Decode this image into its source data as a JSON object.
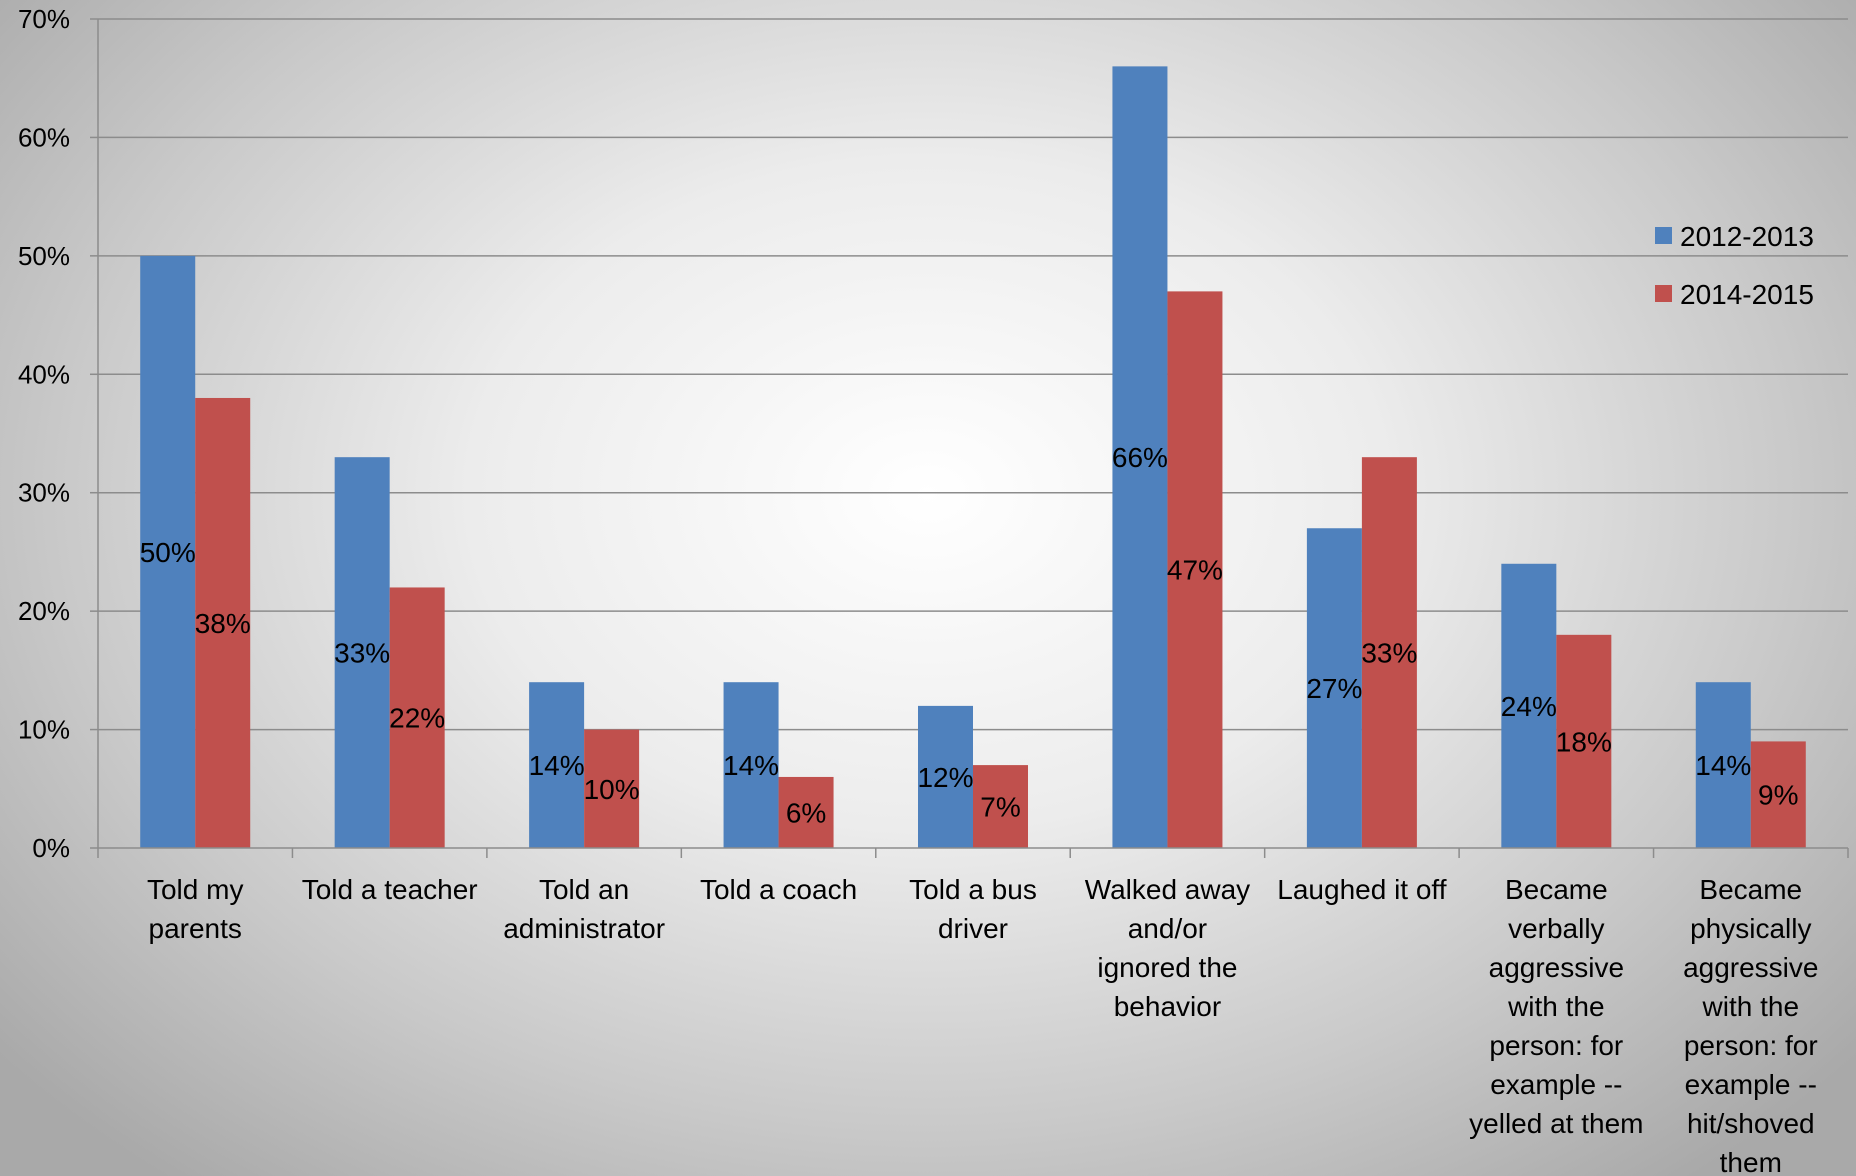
{
  "colors": {
    "series_2012": "#4f81bd",
    "series_2014": "#c0504d",
    "gridline": "#8c8c8c",
    "axis": "#8c8c8c"
  },
  "chart_data": {
    "type": "bar",
    "title": "",
    "xlabel": "",
    "ylabel": "",
    "ylim": [
      0,
      70
    ],
    "yticks": [
      "0%",
      "10%",
      "20%",
      "30%",
      "40%",
      "50%",
      "60%",
      "70%"
    ],
    "grid": true,
    "legend_position": "right",
    "categories": [
      [
        "Told my",
        "parents"
      ],
      [
        "Told a teacher"
      ],
      [
        "Told an",
        "administrator"
      ],
      [
        "Told a coach"
      ],
      [
        "Told a bus",
        "driver"
      ],
      [
        "Walked away",
        "and/or",
        "ignored the",
        "behavior"
      ],
      [
        "Laughed it off"
      ],
      [
        "Became",
        "verbally",
        "aggressive",
        "with the",
        "person: for",
        "example --",
        "yelled at them"
      ],
      [
        "Became",
        "physically",
        "aggressive",
        "with the",
        "person: for",
        "example --",
        "hit/shoved",
        "them"
      ]
    ],
    "series": [
      {
        "name": "2012-2013",
        "color": "#4f81bd",
        "values": [
          50,
          33,
          14,
          14,
          12,
          66,
          27,
          24,
          14
        ],
        "labels": [
          "50%",
          "33%",
          "14%",
          "14%",
          "12%",
          "66%",
          "27%",
          "24%",
          "14%"
        ]
      },
      {
        "name": "2014-2015",
        "color": "#c0504d",
        "values": [
          38,
          22,
          10,
          6,
          7,
          47,
          33,
          18,
          9
        ],
        "labels": [
          "38%",
          "22%",
          "10%",
          "6%",
          "7%",
          "47%",
          "33%",
          "18%",
          "9%"
        ]
      }
    ]
  }
}
